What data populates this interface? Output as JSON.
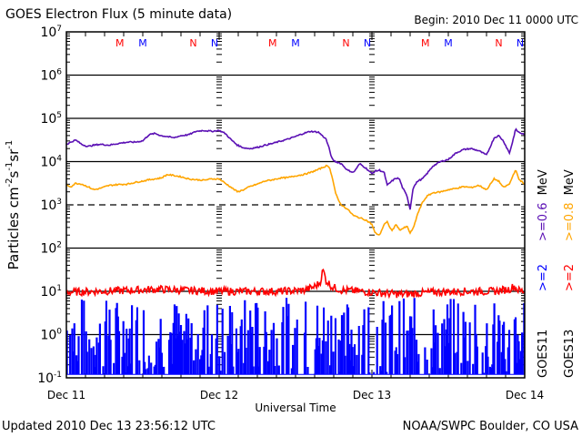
{
  "chart_data": {
    "type": "line",
    "title": "GOES Electron Flux (5 minute data)",
    "begin_label": "Begin: 2010 Dec 11 0000 UTC",
    "xlabel": "Universal Time",
    "ylabel": "Particles cm-2s-1sr-1",
    "ylabel_parts": {
      "main": "Particles cm",
      "e1": "-2",
      "s": "s",
      "e2": "-1",
      "sr": "sr",
      "e3": "-1"
    },
    "yscale": "log",
    "ylim_exp": [
      -1,
      7
    ],
    "ytick_labels": [
      {
        "base": "10",
        "exp": "7",
        "value": 7
      },
      {
        "base": "10",
        "exp": "6",
        "value": 6
      },
      {
        "base": "10",
        "exp": "5",
        "value": 5
      },
      {
        "base": "10",
        "exp": "4",
        "value": 4
      },
      {
        "base": "10",
        "exp": "3",
        "value": 3
      },
      {
        "base": "10",
        "exp": "2",
        "value": 2
      },
      {
        "base": "10",
        "exp": "1",
        "value": 1
      },
      {
        "base": "10",
        "exp": "0",
        "value": 0
      },
      {
        "base": "10",
        "exp": "-1",
        "value": -1
      }
    ],
    "xlim_days": [
      0,
      3
    ],
    "xtick_labels": [
      {
        "label": "Dec 11",
        "day": 0
      },
      {
        "label": "Dec 12",
        "day": 1
      },
      {
        "label": "Dec 13",
        "day": 2
      },
      {
        "label": "Dec 14",
        "day": 3
      }
    ],
    "threshold_dashed_exp": 3,
    "solid_grid_exp": [
      6,
      5,
      4,
      2,
      1,
      0
    ],
    "markers": [
      {
        "label": "M",
        "day": 0.35,
        "color": "#ff0000"
      },
      {
        "label": "M",
        "day": 0.5,
        "color": "#0000ff"
      },
      {
        "label": "N",
        "day": 0.83,
        "color": "#ff0000"
      },
      {
        "label": "N",
        "day": 0.97,
        "color": "#0000ff"
      },
      {
        "label": "M",
        "day": 1.35,
        "color": "#ff0000"
      },
      {
        "label": "M",
        "day": 1.5,
        "color": "#0000ff"
      },
      {
        "label": "N",
        "day": 1.83,
        "color": "#ff0000"
      },
      {
        "label": "N",
        "day": 1.97,
        "color": "#0000ff"
      },
      {
        "label": "M",
        "day": 2.35,
        "color": "#ff0000"
      },
      {
        "label": "M",
        "day": 2.5,
        "color": "#0000ff"
      },
      {
        "label": "N",
        "day": 2.83,
        "color": "#ff0000"
      },
      {
        "label": "N",
        "day": 2.97,
        "color": "#0000ff"
      }
    ],
    "series": [
      {
        "name": ">=0.6 MeV",
        "legend_label": ">=0.6 MeV",
        "satellite": "GOES11",
        "color": "#5a0fb4",
        "day": [
          0,
          0.03,
          0.06,
          0.1,
          0.14,
          0.18,
          0.22,
          0.28,
          0.34,
          0.4,
          0.45,
          0.5,
          0.54,
          0.58,
          0.62,
          0.66,
          0.7,
          0.75,
          0.8,
          0.85,
          0.9,
          0.95,
          1.0,
          1.04,
          1.08,
          1.12,
          1.16,
          1.2,
          1.25,
          1.3,
          1.35,
          1.4,
          1.45,
          1.5,
          1.55,
          1.6,
          1.65,
          1.7,
          1.72,
          1.74,
          1.76,
          1.78,
          1.8,
          1.84,
          1.88,
          1.92,
          1.96,
          2.0,
          2.02,
          2.05,
          2.08,
          2.1,
          2.13,
          2.16,
          2.18,
          2.2,
          2.23,
          2.25,
          2.27,
          2.3,
          2.33,
          2.36,
          2.4,
          2.45,
          2.5,
          2.55,
          2.6,
          2.65,
          2.7,
          2.75,
          2.8,
          2.83,
          2.86,
          2.9,
          2.92,
          2.94,
          2.96,
          3.0
        ],
        "value_log10": [
          4.4,
          4.45,
          4.5,
          4.4,
          4.35,
          4.38,
          4.4,
          4.38,
          4.42,
          4.45,
          4.45,
          4.48,
          4.62,
          4.65,
          4.6,
          4.58,
          4.55,
          4.6,
          4.62,
          4.7,
          4.72,
          4.7,
          4.72,
          4.65,
          4.5,
          4.38,
          4.32,
          4.3,
          4.33,
          4.38,
          4.42,
          4.47,
          4.52,
          4.58,
          4.65,
          4.7,
          4.68,
          4.52,
          4.3,
          4.05,
          4.0,
          3.98,
          3.95,
          3.8,
          3.75,
          3.95,
          3.85,
          3.72,
          3.78,
          3.8,
          3.75,
          3.45,
          3.55,
          3.62,
          3.6,
          3.4,
          3.2,
          2.9,
          3.4,
          3.55,
          3.6,
          3.72,
          3.9,
          4.0,
          4.05,
          4.2,
          4.28,
          4.3,
          4.25,
          4.15,
          4.55,
          4.6,
          4.48,
          4.2,
          4.45,
          4.75,
          4.68,
          4.62
        ]
      },
      {
        "name": ">=0.8 MeV",
        "legend_label": ">=0.8 MeV",
        "satellite": "GOES13",
        "color": "#ffa500",
        "day": [
          0,
          0.03,
          0.06,
          0.1,
          0.14,
          0.18,
          0.22,
          0.28,
          0.34,
          0.4,
          0.45,
          0.5,
          0.54,
          0.58,
          0.62,
          0.66,
          0.7,
          0.75,
          0.8,
          0.85,
          0.9,
          0.95,
          1.0,
          1.04,
          1.08,
          1.12,
          1.16,
          1.2,
          1.25,
          1.3,
          1.35,
          1.4,
          1.45,
          1.5,
          1.55,
          1.6,
          1.65,
          1.7,
          1.72,
          1.74,
          1.76,
          1.78,
          1.8,
          1.84,
          1.88,
          1.92,
          1.96,
          2.0,
          2.02,
          2.05,
          2.08,
          2.1,
          2.13,
          2.16,
          2.18,
          2.2,
          2.23,
          2.25,
          2.27,
          2.3,
          2.33,
          2.36,
          2.4,
          2.45,
          2.5,
          2.55,
          2.6,
          2.65,
          2.7,
          2.75,
          2.8,
          2.83,
          2.86,
          2.9,
          2.92,
          2.94,
          2.96,
          3.0
        ],
        "value_log10": [
          3.45,
          3.42,
          3.5,
          3.48,
          3.42,
          3.35,
          3.38,
          3.45,
          3.47,
          3.48,
          3.52,
          3.55,
          3.58,
          3.6,
          3.62,
          3.7,
          3.68,
          3.65,
          3.6,
          3.58,
          3.57,
          3.6,
          3.6,
          3.5,
          3.4,
          3.3,
          3.35,
          3.42,
          3.48,
          3.55,
          3.58,
          3.62,
          3.63,
          3.67,
          3.7,
          3.75,
          3.82,
          3.9,
          3.88,
          3.65,
          3.3,
          3.1,
          3.0,
          2.9,
          2.75,
          2.7,
          2.65,
          2.55,
          2.35,
          2.3,
          2.55,
          2.6,
          2.4,
          2.55,
          2.42,
          2.45,
          2.5,
          2.35,
          2.45,
          2.8,
          3.05,
          3.2,
          3.28,
          3.3,
          3.35,
          3.38,
          3.42,
          3.4,
          3.45,
          3.35,
          3.6,
          3.55,
          3.4,
          3.48,
          3.65,
          3.82,
          3.6,
          3.48
        ]
      },
      {
        "name": ">=2 MeV",
        "legend_label": ">=2",
        "satellite": "GOES11",
        "color": "#0000ff",
        "note": "mostly noise near background 10^-1 to 10^1"
      },
      {
        "name": ">=2 MeV",
        "legend_label": ">=2",
        "satellite": "GOES13",
        "color": "#ff0000",
        "day": [
          0,
          0.2,
          0.4,
          0.6,
          0.8,
          1.0,
          1.2,
          1.4,
          1.55,
          1.62,
          1.66,
          1.68,
          1.7,
          1.74,
          1.8,
          2.0,
          2.1,
          2.2,
          2.4,
          2.6,
          2.8,
          2.9,
          2.93,
          2.96,
          3.0
        ],
        "value_log10": [
          0.98,
          1.0,
          1.02,
          1.05,
          1.02,
          1.0,
          1.0,
          1.0,
          1.02,
          1.1,
          1.2,
          1.5,
          1.25,
          1.1,
          1.03,
          0.98,
          0.95,
          0.93,
          0.98,
          1.0,
          1.0,
          1.05,
          1.12,
          1.02,
          1.0
        ]
      }
    ],
    "legend": {
      "mev_label": "MeV",
      "col1": {
        "threshold1": ">=0.6",
        "threshold2": ">=2",
        "satellite": "GOES11",
        "color1": "#5a0fb4",
        "color2": "#0000ff"
      },
      "col2": {
        "threshold1": ">=0.8",
        "threshold2": ">=2",
        "satellite": "GOES13",
        "color1": "#ffa500",
        "color2": "#ff0000"
      }
    }
  },
  "footer": {
    "updated": "Updated 2010 Dec 13 23:56:12 UTC",
    "credit": "NOAA/SWPC Boulder, CO USA"
  }
}
